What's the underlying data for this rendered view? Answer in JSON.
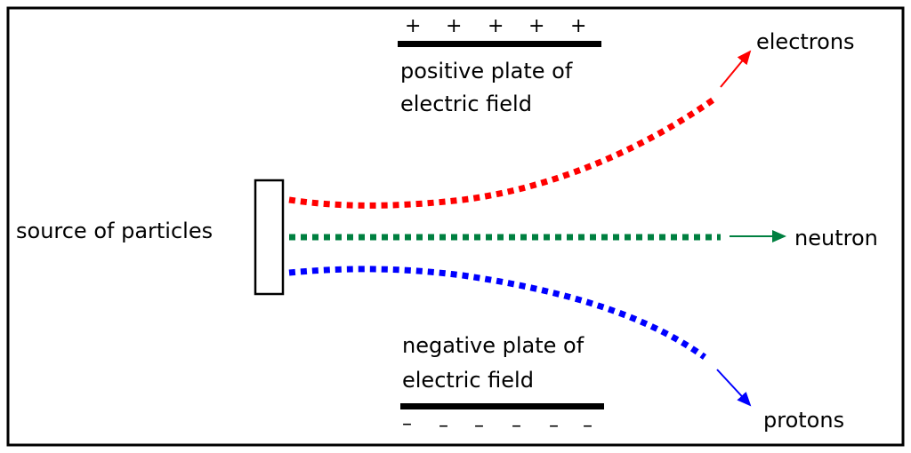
{
  "labels": {
    "source": "source of particles",
    "positive_plate_line1": "positive plate of",
    "positive_plate_line2": "electric field",
    "negative_plate_line1": "negative plate of",
    "negative_plate_line2": "electric field",
    "electrons": "electrons",
    "neutron": "neutron",
    "protons": "protons"
  },
  "signs": {
    "plus": [
      "+",
      "+",
      "+",
      "+",
      "+"
    ],
    "minus": [
      "–",
      "–",
      "–",
      "–",
      "–",
      "–"
    ]
  },
  "colors": {
    "electrons": "#ff0000",
    "neutron": "#008040",
    "protons": "#0000ff"
  }
}
